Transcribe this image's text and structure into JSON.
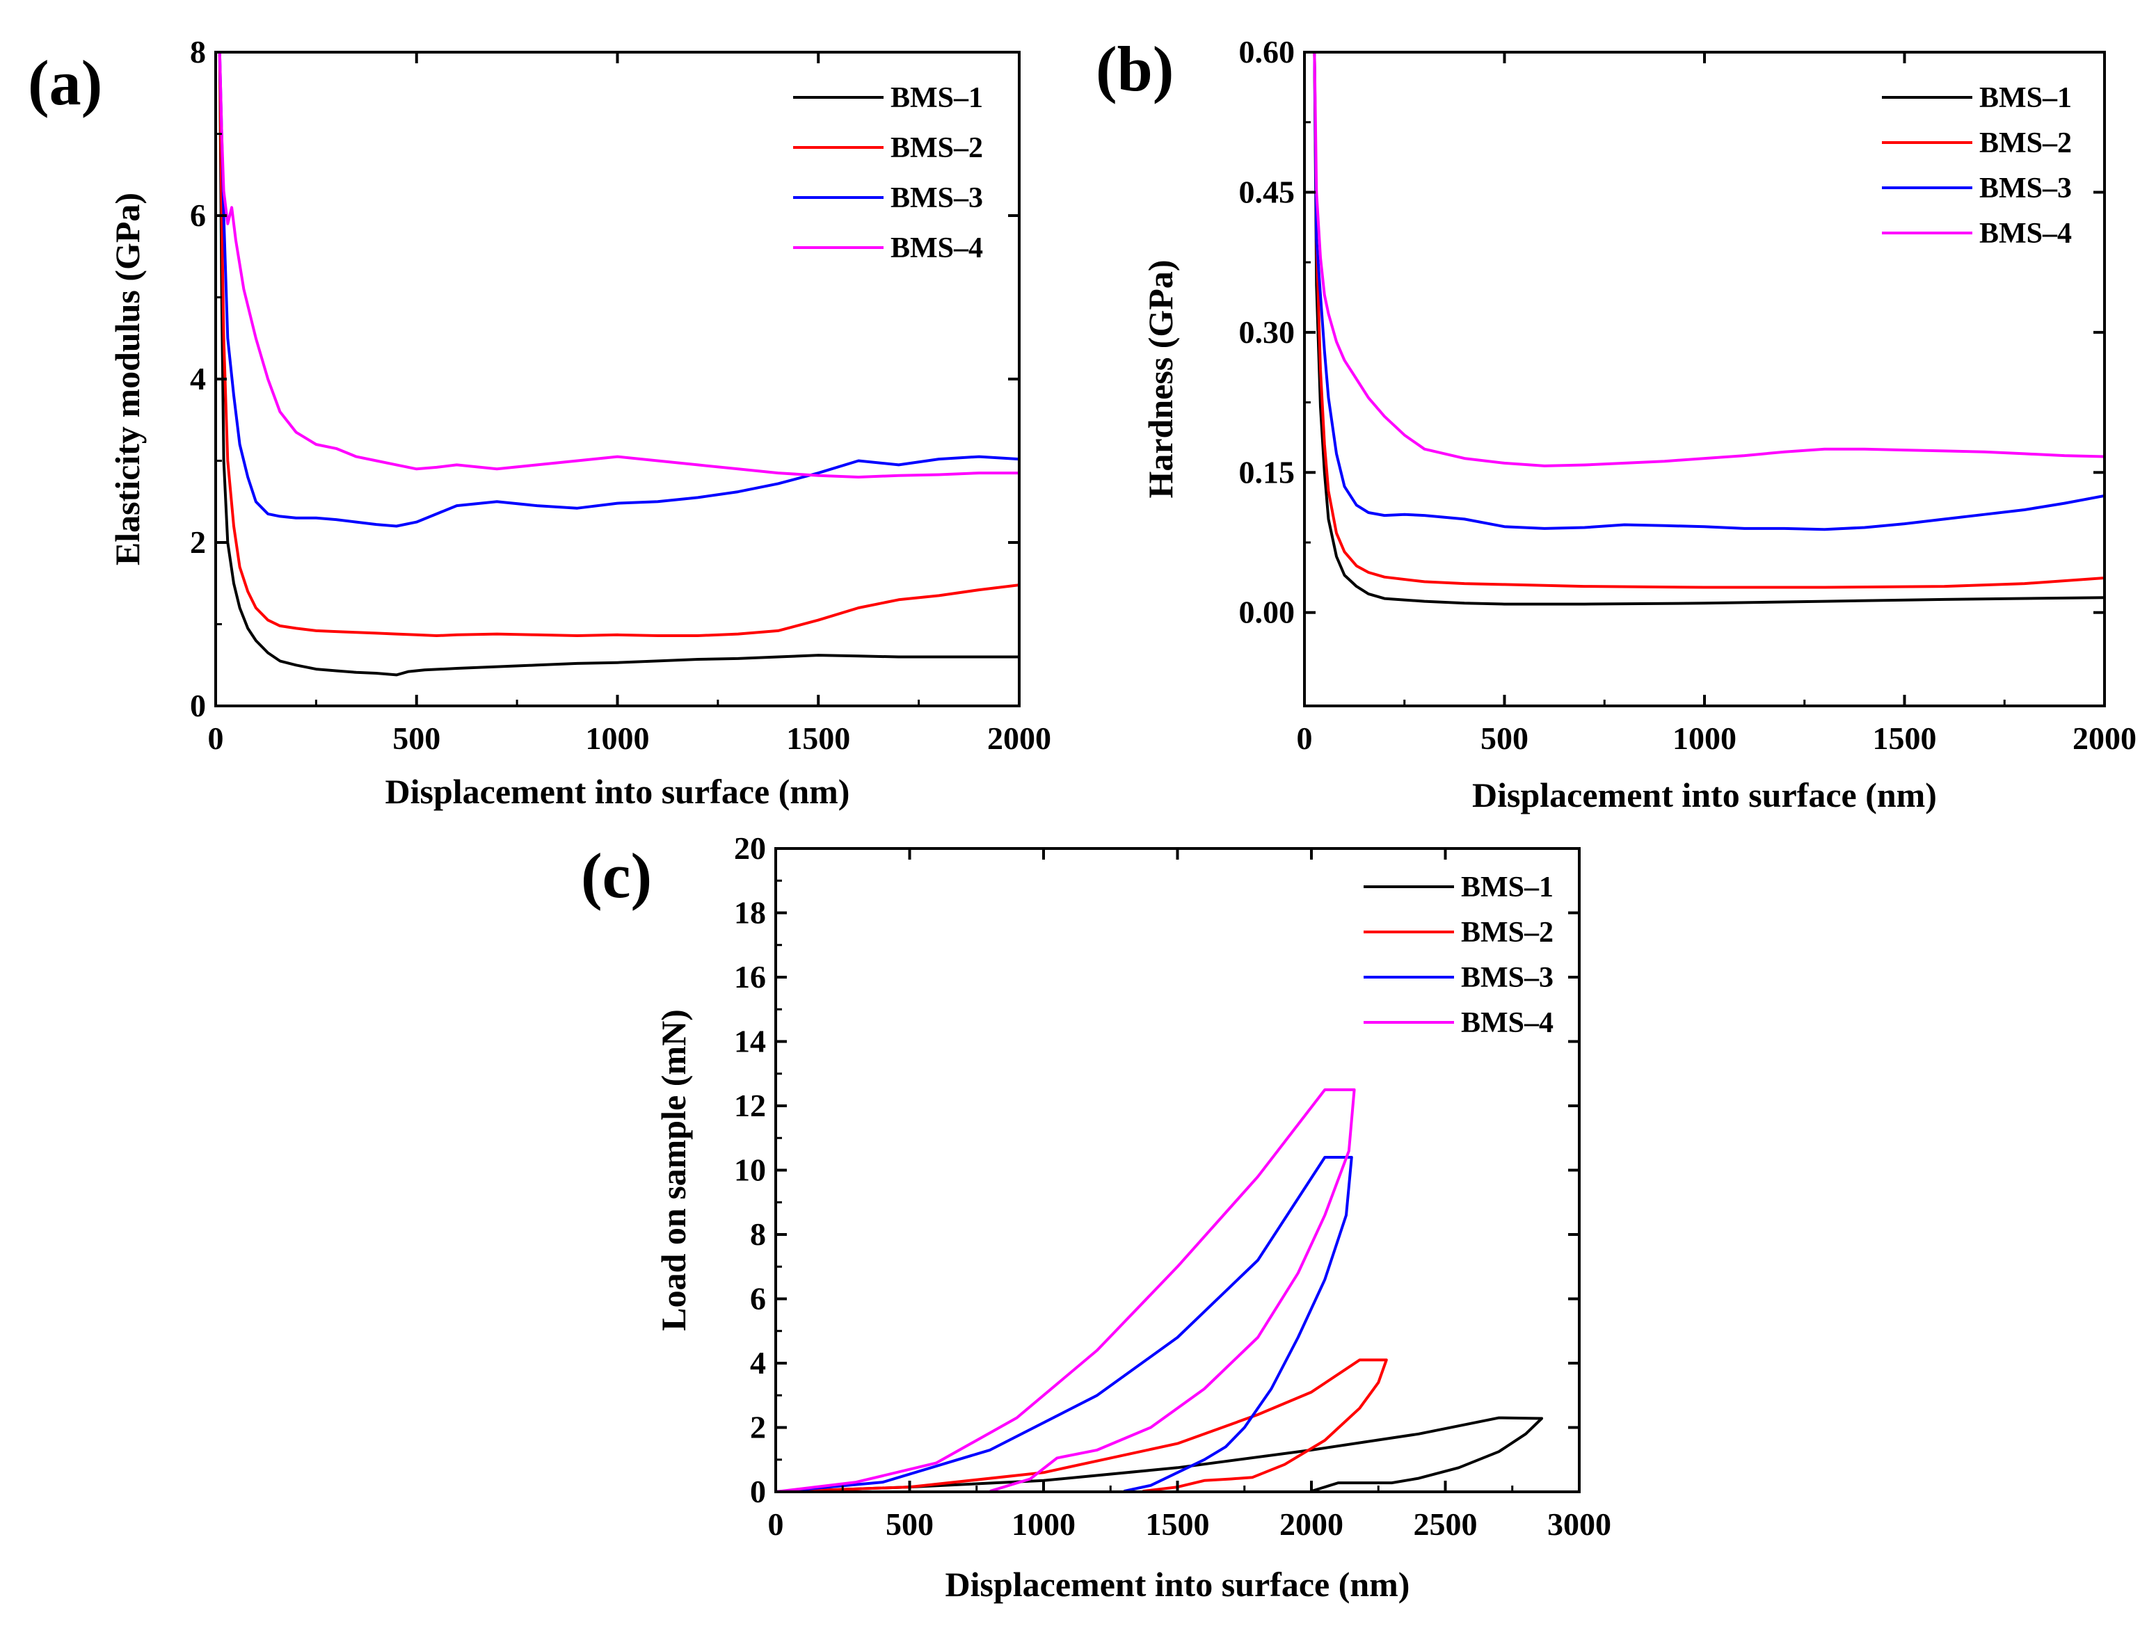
{
  "figure": {
    "panels": [
      "a",
      "b",
      "c"
    ]
  },
  "chart_data": [
    {
      "panel_label": "(a)",
      "type": "line",
      "title": "",
      "xlabel": "Displacement into surface (nm)",
      "ylabel": "Elasticity modulus (GPa)",
      "xlim": [
        0,
        2000
      ],
      "ylim": [
        0,
        8
      ],
      "xticks": [
        0,
        500,
        1000,
        1500,
        2000
      ],
      "yticks": [
        0,
        2,
        4,
        6,
        8
      ],
      "grid": false,
      "legend": "top-right",
      "series": [
        {
          "name": "BMS–1",
          "color": "#000000",
          "x": [
            10,
            15,
            20,
            30,
            45,
            60,
            80,
            100,
            130,
            160,
            200,
            250,
            300,
            350,
            400,
            450,
            480,
            520,
            600,
            700,
            800,
            900,
            1000,
            1100,
            1200,
            1300,
            1400,
            1500,
            1600,
            1700,
            1800,
            1900,
            2000
          ],
          "y": [
            8.0,
            5.0,
            3.0,
            2.0,
            1.5,
            1.2,
            0.95,
            0.8,
            0.65,
            0.55,
            0.5,
            0.45,
            0.43,
            0.41,
            0.4,
            0.38,
            0.42,
            0.44,
            0.46,
            0.48,
            0.5,
            0.52,
            0.53,
            0.55,
            0.57,
            0.58,
            0.6,
            0.62,
            0.61,
            0.6,
            0.6,
            0.6,
            0.6
          ]
        },
        {
          "name": "BMS–2",
          "color": "#ff0000",
          "x": [
            10,
            15,
            20,
            30,
            45,
            60,
            80,
            100,
            130,
            160,
            200,
            250,
            300,
            350,
            400,
            450,
            500,
            550,
            600,
            700,
            800,
            900,
            1000,
            1100,
            1200,
            1300,
            1400,
            1500,
            1600,
            1700,
            1800,
            1900,
            2000
          ],
          "y": [
            8.0,
            6.0,
            4.5,
            3.0,
            2.2,
            1.7,
            1.4,
            1.2,
            1.05,
            0.98,
            0.95,
            0.92,
            0.91,
            0.9,
            0.89,
            0.88,
            0.87,
            0.86,
            0.87,
            0.88,
            0.87,
            0.86,
            0.87,
            0.86,
            0.86,
            0.88,
            0.92,
            1.05,
            1.2,
            1.3,
            1.35,
            1.42,
            1.48
          ]
        },
        {
          "name": "BMS–3",
          "color": "#0000ff",
          "x": [
            10,
            15,
            20,
            30,
            45,
            60,
            80,
            100,
            130,
            160,
            200,
            250,
            300,
            350,
            400,
            450,
            500,
            550,
            600,
            700,
            800,
            900,
            1000,
            1100,
            1200,
            1300,
            1400,
            1500,
            1600,
            1700,
            1800,
            1900,
            2000
          ],
          "y": [
            8.0,
            7.0,
            6.0,
            4.5,
            3.8,
            3.2,
            2.8,
            2.5,
            2.35,
            2.32,
            2.3,
            2.3,
            2.28,
            2.25,
            2.22,
            2.2,
            2.25,
            2.35,
            2.45,
            2.5,
            2.45,
            2.42,
            2.48,
            2.5,
            2.55,
            2.62,
            2.72,
            2.85,
            3.0,
            2.95,
            3.02,
            3.05,
            3.02
          ]
        },
        {
          "name": "BMS–4",
          "color": "#ff00ff",
          "x": [
            10,
            15,
            20,
            30,
            40,
            50,
            70,
            100,
            130,
            160,
            200,
            250,
            300,
            350,
            400,
            450,
            500,
            550,
            600,
            700,
            800,
            900,
            1000,
            1100,
            1200,
            1300,
            1400,
            1500,
            1600,
            1700,
            1800,
            1900,
            2000
          ],
          "y": [
            8.0,
            7.0,
            6.3,
            5.9,
            6.1,
            5.7,
            5.1,
            4.5,
            4.0,
            3.6,
            3.35,
            3.2,
            3.15,
            3.05,
            3.0,
            2.95,
            2.9,
            2.92,
            2.95,
            2.9,
            2.95,
            3.0,
            3.05,
            3.0,
            2.95,
            2.9,
            2.85,
            2.82,
            2.8,
            2.82,
            2.83,
            2.85,
            2.85
          ]
        }
      ]
    },
    {
      "panel_label": "(b)",
      "type": "line",
      "title": "",
      "xlabel": "Displacement into surface (nm)",
      "ylabel": "Hardness (GPa)",
      "xlim": [
        0,
        2000
      ],
      "ylim": [
        -0.1,
        0.6
      ],
      "xticks": [
        0,
        500,
        1000,
        1500,
        2000
      ],
      "yticks": [
        "0.00",
        "0.15",
        "0.30",
        "0.45",
        "0.60"
      ],
      "grid": false,
      "legend": "top-right",
      "series": [
        {
          "name": "BMS–1",
          "color": "#000000",
          "x": [
            25,
            30,
            40,
            50,
            60,
            80,
            100,
            130,
            160,
            200,
            300,
            400,
            500,
            700,
            1000,
            1300,
            1600,
            2000
          ],
          "y": [
            0.6,
            0.35,
            0.22,
            0.15,
            0.1,
            0.06,
            0.04,
            0.028,
            0.02,
            0.015,
            0.012,
            0.01,
            0.009,
            0.009,
            0.01,
            0.012,
            0.014,
            0.016
          ]
        },
        {
          "name": "BMS–2",
          "color": "#ff0000",
          "x": [
            25,
            30,
            40,
            50,
            60,
            80,
            100,
            130,
            160,
            200,
            300,
            400,
            500,
            700,
            1000,
            1300,
            1600,
            1800,
            2000
          ],
          "y": [
            0.6,
            0.4,
            0.26,
            0.18,
            0.13,
            0.085,
            0.065,
            0.05,
            0.043,
            0.038,
            0.033,
            0.031,
            0.03,
            0.028,
            0.027,
            0.027,
            0.028,
            0.031,
            0.037
          ]
        },
        {
          "name": "BMS–3",
          "color": "#0000ff",
          "x": [
            25,
            30,
            40,
            50,
            60,
            80,
            100,
            130,
            160,
            200,
            250,
            300,
            400,
            500,
            600,
            700,
            800,
            900,
            1000,
            1100,
            1200,
            1300,
            1400,
            1500,
            1600,
            1700,
            1800,
            1900,
            2000
          ],
          "y": [
            0.6,
            0.4,
            0.34,
            0.28,
            0.23,
            0.17,
            0.135,
            0.115,
            0.107,
            0.104,
            0.105,
            0.104,
            0.1,
            0.092,
            0.09,
            0.091,
            0.094,
            0.093,
            0.092,
            0.09,
            0.09,
            0.089,
            0.091,
            0.095,
            0.1,
            0.105,
            0.11,
            0.117,
            0.125
          ]
        },
        {
          "name": "BMS–4",
          "color": "#ff00ff",
          "x": [
            25,
            30,
            40,
            50,
            60,
            80,
            100,
            130,
            160,
            200,
            250,
            300,
            400,
            500,
            600,
            700,
            800,
            900,
            1000,
            1100,
            1200,
            1300,
            1400,
            1500,
            1600,
            1700,
            1800,
            1900,
            2000
          ],
          "y": [
            0.6,
            0.45,
            0.38,
            0.34,
            0.32,
            0.29,
            0.27,
            0.25,
            0.23,
            0.21,
            0.19,
            0.175,
            0.165,
            0.16,
            0.157,
            0.158,
            0.16,
            0.162,
            0.165,
            0.168,
            0.172,
            0.175,
            0.175,
            0.174,
            0.173,
            0.172,
            0.17,
            0.168,
            0.167
          ]
        }
      ]
    },
    {
      "panel_label": "(c)",
      "type": "line",
      "title": "",
      "xlabel": "Displacement into surface (nm)",
      "ylabel": "Load on sample (mN)",
      "xlim": [
        0,
        3000
      ],
      "ylim": [
        0,
        20
      ],
      "xticks": [
        0,
        500,
        1000,
        1500,
        2000,
        2500,
        3000
      ],
      "yticks": [
        0,
        2,
        4,
        6,
        8,
        10,
        12,
        14,
        16,
        18,
        20
      ],
      "grid": false,
      "legend": "top-right",
      "series": [
        {
          "name": "BMS–1",
          "color": "#000000",
          "x": [
            0,
            500,
            1000,
            1500,
            2000,
            2400,
            2700,
            2860,
            2800,
            2700,
            2550,
            2400,
            2300,
            2200,
            2100,
            2000
          ],
          "y": [
            0,
            0.15,
            0.35,
            0.75,
            1.3,
            1.8,
            2.3,
            2.28,
            1.8,
            1.25,
            0.75,
            0.42,
            0.28,
            0.28,
            0.28,
            0.02
          ]
        },
        {
          "name": "BMS–2",
          "color": "#ff0000",
          "x": [
            0,
            500,
            1000,
            1500,
            1800,
            2000,
            2180,
            2280,
            2250,
            2180,
            2050,
            1900,
            1780,
            1700,
            1600,
            1500,
            1370
          ],
          "y": [
            0,
            0.15,
            0.6,
            1.5,
            2.4,
            3.1,
            4.1,
            4.1,
            3.4,
            2.6,
            1.6,
            0.85,
            0.45,
            0.4,
            0.35,
            0.15,
            0.02
          ]
        },
        {
          "name": "BMS–3",
          "color": "#0000ff",
          "x": [
            0,
            400,
            800,
            1200,
            1500,
            1800,
            2050,
            2150,
            2130,
            2050,
            1950,
            1850,
            1750,
            1680,
            1600,
            1500,
            1400,
            1300
          ],
          "y": [
            0,
            0.3,
            1.3,
            3.0,
            4.8,
            7.2,
            10.4,
            10.4,
            8.6,
            6.6,
            4.8,
            3.2,
            2.0,
            1.4,
            1.0,
            0.6,
            0.2,
            0.02
          ]
        },
        {
          "name": "BMS–4",
          "color": "#ff00ff",
          "x": [
            0,
            300,
            600,
            900,
            1200,
            1500,
            1800,
            2050,
            2160,
            2140,
            2050,
            1950,
            1800,
            1600,
            1400,
            1200,
            1050,
            950,
            800
          ],
          "y": [
            0,
            0.3,
            0.9,
            2.3,
            4.4,
            7.0,
            9.8,
            12.5,
            12.5,
            10.6,
            8.6,
            6.8,
            4.8,
            3.2,
            2.0,
            1.3,
            1.05,
            0.4,
            0.02
          ]
        }
      ]
    }
  ]
}
